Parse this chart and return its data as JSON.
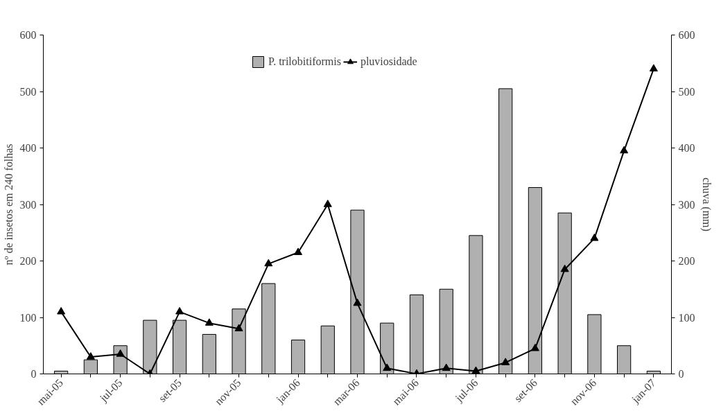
{
  "chart_data": {
    "type": "bar",
    "ylabel": "nº de insetos em 240 folhas",
    "y2label": "chuva (mm)",
    "categories": [
      "mai-05",
      null,
      "jul-05",
      null,
      "set-05",
      null,
      "nov-05",
      null,
      "jan-06",
      null,
      "mar-06",
      null,
      "mai-06",
      null,
      "jul-06",
      null,
      "set-06",
      null,
      "nov-06",
      null,
      "jan-07"
    ],
    "series": [
      {
        "name": "P. trilobitiformis",
        "color": "#b0b0b0",
        "values": [
          5,
          25,
          50,
          95,
          95,
          70,
          115,
          160,
          60,
          85,
          290,
          90,
          140,
          150,
          245,
          505,
          330,
          285,
          105,
          50,
          5
        ]
      },
      {
        "name": "pluviosidade",
        "type": "line",
        "axis": "y2",
        "color": "#000000",
        "marker": "triangle",
        "values": [
          110,
          30,
          35,
          0,
          110,
          90,
          80,
          195,
          215,
          300,
          125,
          10,
          0,
          10,
          5,
          20,
          45,
          185,
          240,
          395,
          540
        ]
      }
    ],
    "ylim": [
      0,
      600
    ],
    "yticks": [
      0,
      100,
      200,
      300,
      400,
      500,
      600
    ],
    "y2lim": [
      0,
      600
    ],
    "y2ticks": [
      0,
      100,
      200,
      300,
      400,
      500,
      600
    ],
    "grid": false,
    "legend": "top"
  }
}
